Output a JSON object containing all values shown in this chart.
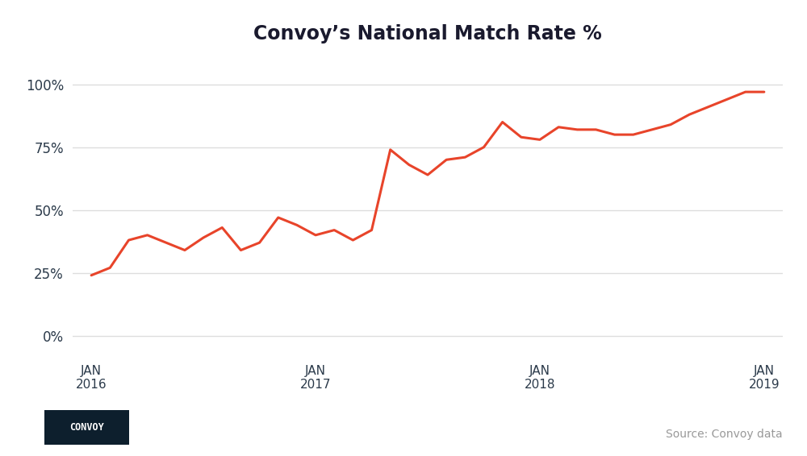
{
  "title": "Convoy’s National Match Rate %",
  "title_fontsize": 17,
  "line_color": "#E8442A",
  "line_width": 2.2,
  "background_color": "#FFFFFF",
  "grid_color": "#DDDDDD",
  "source_text": "Source: Convoy data",
  "convoy_label": "CONVOY",
  "convoy_bg": "#0D1F2D",
  "yticks": [
    0,
    25,
    50,
    75,
    100
  ],
  "ylim": [
    -8,
    110
  ],
  "xtick_labels": [
    "JAN\n2016",
    "JAN\n2017",
    "JAN\n2018",
    "JAN\n2019"
  ],
  "xtick_positions": [
    0,
    12,
    24,
    36
  ],
  "data_x": [
    0,
    1,
    2,
    3,
    4,
    5,
    6,
    7,
    8,
    9,
    10,
    11,
    12,
    13,
    14,
    15,
    16,
    17,
    18,
    19,
    20,
    21,
    22,
    23,
    24,
    25,
    26,
    27,
    28,
    29,
    30,
    31,
    32,
    33,
    34,
    35,
    36
  ],
  "data_y": [
    24,
    27,
    38,
    40,
    37,
    34,
    39,
    43,
    34,
    37,
    47,
    44,
    40,
    42,
    38,
    42,
    74,
    68,
    64,
    70,
    71,
    75,
    85,
    79,
    78,
    83,
    82,
    82,
    80,
    80,
    82,
    84,
    88,
    91,
    94,
    97,
    97
  ]
}
